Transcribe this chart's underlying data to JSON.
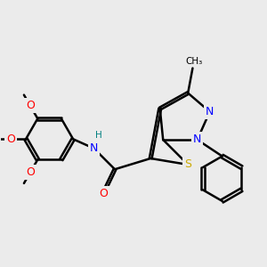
{
  "background_color": "#ebebeb",
  "bond_color": "#000000",
  "bond_width": 1.8,
  "atom_colors": {
    "N": "#0000FF",
    "O": "#FF0000",
    "S": "#ccaa00",
    "H": "#008080",
    "C": "#000000"
  },
  "font_size_atom": 9,
  "font_size_small": 7.5,
  "xlim": [
    0.5,
    9.0
  ],
  "ylim": [
    0.8,
    7.2
  ]
}
